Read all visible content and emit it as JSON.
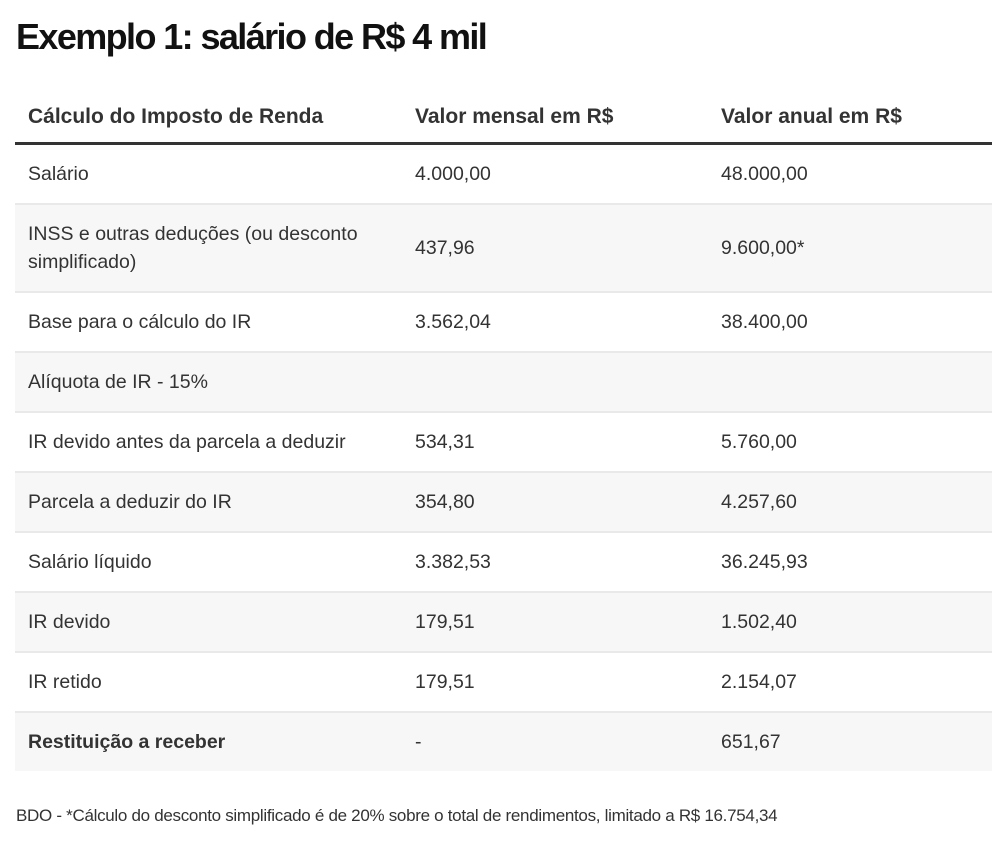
{
  "title": "Exemplo 1: salário de R$ 4 mil",
  "table": {
    "headers": [
      "Cálculo do Imposto de Renda",
      "Valor mensal em R$",
      "Valor anual em R$"
    ],
    "rows": [
      {
        "label": "Salário",
        "monthly": "4.000,00",
        "annual": "48.000,00"
      },
      {
        "label": "INSS e outras deduções (ou desconto simplificado)",
        "monthly": "437,96",
        "annual": "9.600,00*"
      },
      {
        "label": "Base para o cálculo do IR",
        "monthly": "3.562,04",
        "annual": "38.400,00"
      },
      {
        "label": "Alíquota de IR - 15%",
        "monthly": "",
        "annual": ""
      },
      {
        "label": "IR devido antes da parcela a deduzir",
        "monthly": "534,31",
        "annual": "5.760,00"
      },
      {
        "label": "Parcela a deduzir do IR",
        "monthly": "354,80",
        "annual": "4.257,60"
      },
      {
        "label": "Salário líquido",
        "monthly": "3.382,53",
        "annual": "36.245,93"
      },
      {
        "label": "IR devido",
        "monthly": "179,51",
        "annual": "1.502,40"
      },
      {
        "label": "IR retido",
        "monthly": "179,51",
        "annual": "2.154,07"
      },
      {
        "label": "Restituição a receber",
        "monthly": "-",
        "annual": "651,67"
      }
    ]
  },
  "footnote": "BDO - *Cálculo do desconto simplificado é de 20% sobre o total de rendimentos, limitado a R$ 16.754,34",
  "colors": {
    "text": "#333333",
    "title": "#111111",
    "row_alt_bg": "#f7f7f7",
    "header_rule": "#333333",
    "row_divider": "#e9e9e9"
  }
}
